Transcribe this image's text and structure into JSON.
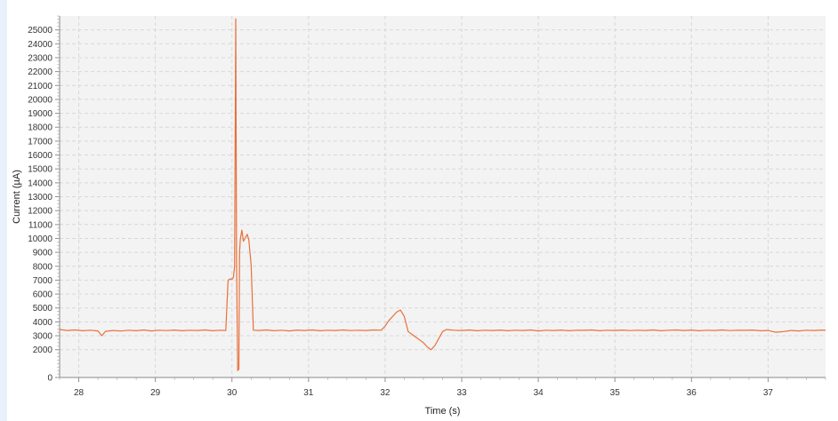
{
  "chart_data": {
    "type": "line",
    "title": "",
    "xlabel": "Time (s)",
    "ylabel": "Current (µA)",
    "xlim": [
      27.75,
      37.75
    ],
    "ylim": [
      0,
      26000
    ],
    "x_ticks": [
      28,
      29,
      30,
      31,
      32,
      33,
      34,
      35,
      36,
      37
    ],
    "y_ticks": [
      0,
      2000,
      3000,
      4000,
      5000,
      6000,
      7000,
      8000,
      9000,
      10000,
      11000,
      12000,
      13000,
      14000,
      15000,
      16000,
      17000,
      18000,
      19000,
      20000,
      21000,
      22000,
      23000,
      24000,
      25000
    ],
    "grid": true,
    "line_color": "#e8703a",
    "plot_background": "#f3f3f3",
    "series": [
      {
        "name": "",
        "points": [
          [
            27.75,
            3450
          ],
          [
            27.85,
            3380
          ],
          [
            27.95,
            3420
          ],
          [
            28.05,
            3360
          ],
          [
            28.15,
            3400
          ],
          [
            28.25,
            3350
          ],
          [
            28.3,
            3000
          ],
          [
            28.35,
            3320
          ],
          [
            28.45,
            3380
          ],
          [
            28.55,
            3340
          ],
          [
            28.65,
            3400
          ],
          [
            28.75,
            3360
          ],
          [
            28.85,
            3420
          ],
          [
            28.95,
            3350
          ],
          [
            29.05,
            3400
          ],
          [
            29.15,
            3370
          ],
          [
            29.25,
            3410
          ],
          [
            29.35,
            3360
          ],
          [
            29.45,
            3400
          ],
          [
            29.55,
            3380
          ],
          [
            29.65,
            3420
          ],
          [
            29.75,
            3360
          ],
          [
            29.85,
            3400
          ],
          [
            29.92,
            3380
          ],
          [
            29.95,
            7000
          ],
          [
            29.98,
            7100
          ],
          [
            30.0,
            7050
          ],
          [
            30.02,
            7200
          ],
          [
            30.035,
            8000
          ],
          [
            30.05,
            25800
          ],
          [
            30.06,
            8400
          ],
          [
            30.075,
            500
          ],
          [
            30.09,
            600
          ],
          [
            30.1,
            9000
          ],
          [
            30.11,
            10000
          ],
          [
            30.13,
            10600
          ],
          [
            30.15,
            9800
          ],
          [
            30.17,
            10000
          ],
          [
            30.2,
            10300
          ],
          [
            30.22,
            9900
          ],
          [
            30.25,
            8100
          ],
          [
            30.28,
            3400
          ],
          [
            30.35,
            3380
          ],
          [
            30.45,
            3420
          ],
          [
            30.55,
            3360
          ],
          [
            30.65,
            3400
          ],
          [
            30.75,
            3350
          ],
          [
            30.85,
            3410
          ],
          [
            30.95,
            3380
          ],
          [
            31.05,
            3420
          ],
          [
            31.15,
            3360
          ],
          [
            31.25,
            3400
          ],
          [
            31.35,
            3380
          ],
          [
            31.45,
            3420
          ],
          [
            31.55,
            3370
          ],
          [
            31.65,
            3400
          ],
          [
            31.75,
            3380
          ],
          [
            31.85,
            3420
          ],
          [
            31.95,
            3400
          ],
          [
            32.0,
            3700
          ],
          [
            32.05,
            4100
          ],
          [
            32.1,
            4400
          ],
          [
            32.15,
            4700
          ],
          [
            32.2,
            4850
          ],
          [
            32.25,
            4400
          ],
          [
            32.3,
            3300
          ],
          [
            32.35,
            3100
          ],
          [
            32.4,
            2900
          ],
          [
            32.45,
            2700
          ],
          [
            32.5,
            2500
          ],
          [
            32.55,
            2200
          ],
          [
            32.6,
            2000
          ],
          [
            32.65,
            2300
          ],
          [
            32.7,
            2800
          ],
          [
            32.75,
            3300
          ],
          [
            32.8,
            3450
          ],
          [
            32.9,
            3400
          ],
          [
            33.0,
            3380
          ],
          [
            33.1,
            3420
          ],
          [
            33.2,
            3360
          ],
          [
            33.3,
            3400
          ],
          [
            33.4,
            3380
          ],
          [
            33.5,
            3410
          ],
          [
            33.6,
            3360
          ],
          [
            33.7,
            3400
          ],
          [
            33.8,
            3380
          ],
          [
            33.9,
            3420
          ],
          [
            34.0,
            3350
          ],
          [
            34.1,
            3400
          ],
          [
            34.2,
            3380
          ],
          [
            34.3,
            3410
          ],
          [
            34.4,
            3360
          ],
          [
            34.5,
            3400
          ],
          [
            34.6,
            3390
          ],
          [
            34.7,
            3420
          ],
          [
            34.8,
            3360
          ],
          [
            34.9,
            3400
          ],
          [
            35.0,
            3380
          ],
          [
            35.1,
            3410
          ],
          [
            35.2,
            3370
          ],
          [
            35.3,
            3400
          ],
          [
            35.4,
            3380
          ],
          [
            35.5,
            3420
          ],
          [
            35.6,
            3360
          ],
          [
            35.7,
            3400
          ],
          [
            35.8,
            3420
          ],
          [
            35.9,
            3380
          ],
          [
            36.0,
            3410
          ],
          [
            36.1,
            3360
          ],
          [
            36.2,
            3400
          ],
          [
            36.3,
            3380
          ],
          [
            36.4,
            3420
          ],
          [
            36.5,
            3370
          ],
          [
            36.6,
            3400
          ],
          [
            36.7,
            3390
          ],
          [
            36.8,
            3410
          ],
          [
            36.9,
            3360
          ],
          [
            37.0,
            3380
          ],
          [
            37.1,
            3250
          ],
          [
            37.2,
            3300
          ],
          [
            37.3,
            3380
          ],
          [
            37.4,
            3350
          ],
          [
            37.5,
            3400
          ],
          [
            37.6,
            3380
          ],
          [
            37.7,
            3410
          ],
          [
            37.75,
            3390
          ]
        ]
      }
    ]
  }
}
